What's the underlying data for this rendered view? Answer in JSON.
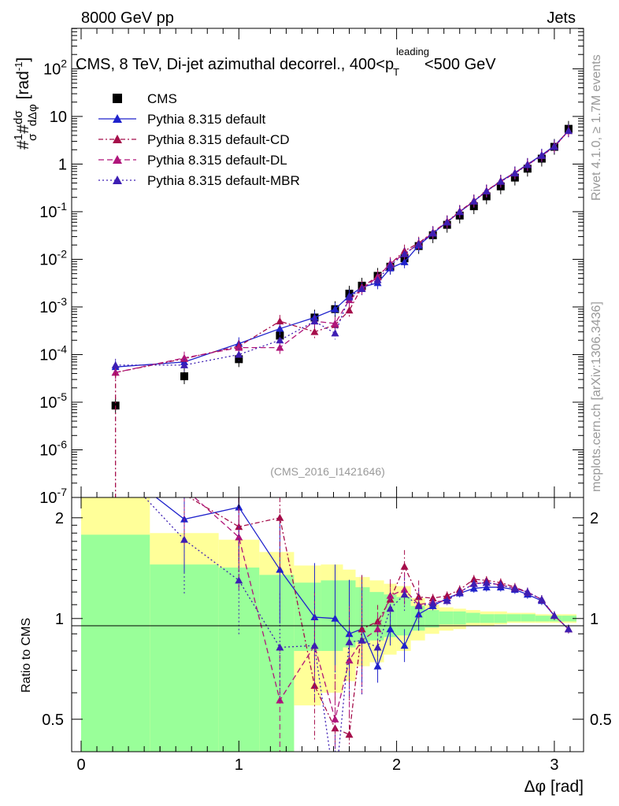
{
  "header": {
    "left": "8000 GeV pp",
    "right": "Jets"
  },
  "side_labels": {
    "rivet": "Rivet 4.1.0, ≥ 1.7M events",
    "mcplots": "mcplots.cern.ch [arXiv:1306.3436]"
  },
  "chart_data": {
    "type": "line",
    "title": "CMS, 8 TeV, Di-jet azimuthal decorrel., 400<p_T^leading<500 GeV",
    "title_parts": {
      "pre": "CMS, 8 TeV, Di-jet azimuthal decorrel., 400<p",
      "sup": "leading",
      "sub": "T",
      "post": "<500 GeV"
    },
    "analysis_id": "(CMS_2016_I1421646)",
    "xlabel": "Δφ [rad]",
    "ylabel": "#1/σ #dσ/dΔφ [rad⁻¹]",
    "ylabel_parts": {
      "hash": "#",
      "one": "1",
      "sigma": "σ",
      "hash2": "#",
      "dsigma": "dσ",
      "dphi": "dΔφ",
      "unit": "[rad",
      "unit_sup": "-1",
      "unit_close": "]"
    },
    "ratio_ylabel": "Ratio to CMS",
    "xlim": [
      -0.08,
      3.2
    ],
    "ylim_log": [
      1e-07,
      1000
    ],
    "ratio_ylim": [
      0.4,
      2.3
    ],
    "x_ticks": [
      "0",
      "1",
      "2",
      "3"
    ],
    "y_ticks": [
      "10^2",
      "10",
      "1",
      "10^-1",
      "10^-2",
      "10^-3",
      "10^-4",
      "10^-5",
      "10^-6",
      "10^-7"
    ],
    "ratio_ticks": [
      "2",
      "1",
      "0.5"
    ],
    "legend": {
      "position": "top-left",
      "entries": [
        "CMS",
        "Pythia 8.315 default",
        "Pythia 8.315 default-CD",
        "Pythia 8.315 default-DL",
        "Pythia 8.315 default-MBR"
      ]
    },
    "x": [
      0.218,
      0.654,
      1.0,
      1.26,
      1.48,
      1.61,
      1.7,
      1.78,
      1.88,
      1.96,
      2.05,
      2.14,
      2.23,
      2.32,
      2.4,
      2.49,
      2.57,
      2.66,
      2.75,
      2.83,
      2.92,
      3.0,
      3.09
    ],
    "series": [
      {
        "name": "CMS",
        "color": "#000000",
        "values": [
          8.5e-06,
          3.5e-05,
          8e-05,
          0.00025,
          0.0006,
          0.0009,
          0.0019,
          0.0028,
          0.0045,
          0.007,
          0.0105,
          0.019,
          0.032,
          0.053,
          0.083,
          0.13,
          0.21,
          0.34,
          0.52,
          0.8,
          1.3,
          2.3,
          5.5
        ]
      },
      {
        "name": "Pythia 8.315 default",
        "color": "#1f22cc",
        "values": [
          5.5e-05,
          7e-05,
          0.00017,
          0.00035,
          0.0006,
          0.0009,
          0.0017,
          0.0026,
          0.0032,
          0.0065,
          0.0088,
          0.0195,
          0.035,
          0.061,
          0.099,
          0.166,
          0.27,
          0.44,
          0.66,
          0.99,
          1.55,
          2.4,
          5.0
        ]
      },
      {
        "name": "Pythia 8.315 default-CD",
        "color": "#a50d4a",
        "values": [
          4.2e-05,
          8.2e-05,
          0.00015,
          0.0005,
          0.0003,
          0.00042,
          0.00085,
          0.0026,
          0.0044,
          0.008,
          0.015,
          0.022,
          0.037,
          0.062,
          0.102,
          0.17,
          0.275,
          0.44,
          0.65,
          0.98,
          1.5,
          2.35,
          5.0
        ]
      },
      {
        "name": "Pythia 8.315 default-DL",
        "color": "#b0157a",
        "values": [
          4.2e-05,
          8.5e-05,
          0.00014,
          0.00014,
          0.0005,
          0.00045,
          0.0014,
          0.0024,
          0.0042,
          0.0082,
          0.013,
          0.021,
          0.036,
          0.06,
          0.1,
          0.165,
          0.27,
          0.43,
          0.64,
          0.96,
          1.5,
          2.3,
          5.0
        ]
      },
      {
        "name": "Pythia 8.315 default-MBR",
        "color": "#3d1eb3",
        "values": [
          6e-05,
          6e-05,
          0.0001,
          0.0002,
          0.0005,
          0.00028,
          0.0016,
          0.0024,
          0.0037,
          0.0075,
          0.013,
          0.021,
          0.036,
          0.06,
          0.1,
          0.165,
          0.27,
          0.43,
          0.64,
          0.96,
          1.5,
          2.3,
          5.0
        ]
      }
    ],
    "ratio_series": [
      {
        "name": "Pythia 8.315 default",
        "values": [
          null,
          1.98,
          2.15,
          1.4,
          1.01,
          1.0,
          0.9,
          0.93,
          0.72,
          0.93,
          0.83,
          1.03,
          1.09,
          1.15,
          1.19,
          1.23,
          1.24,
          1.24,
          1.22,
          1.18,
          1.13,
          1.02,
          0.93
        ]
      },
      {
        "name": "Pythia 8.315 default-CD",
        "values": [
          null,
          2.35,
          1.88,
          2.0,
          0.63,
          0.47,
          0.45,
          0.93,
          0.98,
          1.14,
          1.43,
          1.16,
          1.15,
          1.17,
          1.22,
          1.31,
          1.3,
          1.28,
          1.24,
          1.2,
          1.14,
          1.02,
          0.93
        ]
      },
      {
        "name": "Pythia 8.315 default-DL",
        "values": [
          null,
          2.45,
          1.75,
          0.57,
          0.83,
          0.5,
          0.75,
          0.86,
          0.93,
          1.17,
          1.22,
          1.1,
          1.12,
          1.13,
          1.2,
          1.27,
          1.28,
          1.26,
          1.23,
          1.2,
          1.14,
          1.02,
          0.93
        ]
      },
      {
        "name": "Pythia 8.315 default-MBR",
        "values": [
          null,
          1.72,
          1.3,
          0.82,
          0.83,
          0.31,
          0.85,
          0.86,
          0.82,
          1.07,
          1.18,
          1.09,
          1.11,
          1.13,
          1.2,
          1.27,
          1.28,
          1.26,
          1.23,
          1.2,
          1.14,
          1.02,
          0.93
        ]
      }
    ],
    "ratio_bands": {
      "edges": [
        0.0,
        0.436,
        0.872,
        1.13,
        1.35,
        1.52,
        1.66,
        1.74,
        1.83,
        1.92,
        2.0,
        2.09,
        2.18,
        2.27,
        2.36,
        2.44,
        2.53,
        2.62,
        2.7,
        2.79,
        2.88,
        2.97,
        3.05,
        3.14
      ],
      "green_up": [
        1.78,
        1.45,
        1.42,
        1.35,
        1.28,
        1.3,
        1.3,
        1.24,
        1.2,
        1.18,
        1.16,
        1.09,
        1.06,
        1.05,
        1.05,
        1.04,
        1.03,
        1.03,
        1.03,
        1.03,
        1.02,
        1.02,
        1.02
      ],
      "green_lo": [
        0.4,
        0.4,
        0.4,
        0.4,
        0.8,
        0.8,
        0.82,
        0.85,
        0.86,
        0.88,
        0.89,
        0.92,
        0.94,
        0.96,
        0.96,
        0.97,
        0.97,
        0.97,
        0.98,
        0.98,
        0.98,
        0.98,
        0.98
      ],
      "yellow_up": [
        2.3,
        1.8,
        1.72,
        1.58,
        1.44,
        1.45,
        1.4,
        1.33,
        1.3,
        1.27,
        1.25,
        1.15,
        1.1,
        1.08,
        1.07,
        1.06,
        1.05,
        1.05,
        1.04,
        1.04,
        1.03,
        1.03,
        1.03
      ],
      "yellow_lo": [
        0.4,
        0.4,
        0.4,
        0.4,
        0.55,
        0.6,
        0.65,
        0.72,
        0.74,
        0.78,
        0.8,
        0.86,
        0.9,
        0.92,
        0.93,
        0.95,
        0.95,
        0.96,
        0.97,
        0.97,
        0.97,
        0.97,
        0.97
      ]
    },
    "band_colors": {
      "green": "#99ff99",
      "yellow": "#ffff99"
    }
  }
}
